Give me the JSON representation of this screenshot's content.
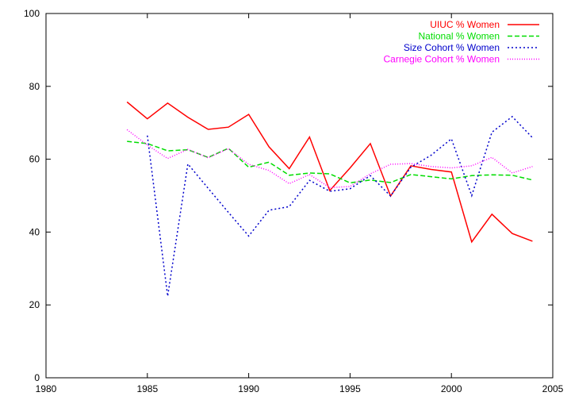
{
  "chart_data": {
    "type": "line",
    "title": "",
    "xlabel": "",
    "ylabel": "",
    "xlim": [
      1980,
      2005
    ],
    "ylim": [
      0,
      100
    ],
    "xticks": [
      1980,
      1985,
      1990,
      1995,
      2000,
      2005
    ],
    "yticks": [
      0,
      20,
      40,
      60,
      80,
      100
    ],
    "grid": false,
    "legend_position": "top-right",
    "x": [
      1984,
      1985,
      1986,
      1987,
      1988,
      1989,
      1990,
      1991,
      1992,
      1993,
      1994,
      1995,
      1996,
      1997,
      1998,
      1999,
      2000,
      2001,
      2002,
      2003,
      2004
    ],
    "series": [
      {
        "name": "UIUC % Women",
        "color": "#ff0000",
        "dash": "solid",
        "x": [
          1984,
          1985,
          1986,
          1987,
          1988,
          1989,
          1990,
          1991,
          1992,
          1993,
          1994,
          1995,
          1996,
          1997,
          1998,
          1999,
          2000,
          2001,
          2002,
          2003,
          2004
        ],
        "values": [
          75.7,
          71.1,
          75.4,
          71.5,
          68.2,
          68.8,
          72.3,
          63.4,
          57.4,
          66.1,
          51.4,
          57.6,
          64.3,
          49.9,
          58.2,
          57.2,
          56.5,
          37.3,
          44.9,
          39.6,
          37.5
        ]
      },
      {
        "name": "National % Women",
        "color": "#00dd00",
        "dash": "dashed",
        "x": [
          1984,
          1985,
          1986,
          1987,
          1988,
          1989,
          1990,
          1991,
          1992,
          1993,
          1994,
          1995,
          1996,
          1997,
          1998,
          1999,
          2000,
          2001,
          2002,
          2003,
          2004
        ],
        "values": [
          64.9,
          64.3,
          62.3,
          62.6,
          60.5,
          63.0,
          57.8,
          59.2,
          55.6,
          56.2,
          56.0,
          53.5,
          54.3,
          53.6,
          55.8,
          55.2,
          54.6,
          55.5,
          55.7,
          55.6,
          54.3
        ]
      },
      {
        "name": "Size Cohort % Women",
        "color": "#0000cc",
        "dash": "dotted",
        "x": [
          1985,
          1986,
          1987,
          1988,
          1989,
          1990,
          1991,
          1992,
          1993,
          1994,
          1995,
          1996,
          1997,
          1998,
          1999,
          2000,
          2001,
          2002,
          2003,
          2004
        ],
        "values": [
          66.5,
          22.4,
          58.7,
          52.0,
          45.4,
          38.9,
          46.0,
          47.0,
          54.2,
          51.2,
          51.9,
          55.5,
          49.9,
          57.8,
          61.1,
          65.6,
          50.0,
          67.4,
          71.7,
          65.9
        ]
      },
      {
        "name": "Carnegie Cohort % Women",
        "color": "#ff00ff",
        "dash": "finedotted",
        "x": [
          1984,
          1985,
          1986,
          1987,
          1988,
          1989,
          1990,
          1991,
          1992,
          1993,
          1994,
          1995,
          1996,
          1997,
          1998,
          1999,
          2000,
          2001,
          2002,
          2003,
          2004
        ],
        "values": [
          68.1,
          63.9,
          60.2,
          62.7,
          60.4,
          62.9,
          58.6,
          56.9,
          53.3,
          55.8,
          52.2,
          52.5,
          56.0,
          58.6,
          58.8,
          58.0,
          57.6,
          58.2,
          60.5,
          56.2,
          58.0
        ]
      }
    ]
  }
}
